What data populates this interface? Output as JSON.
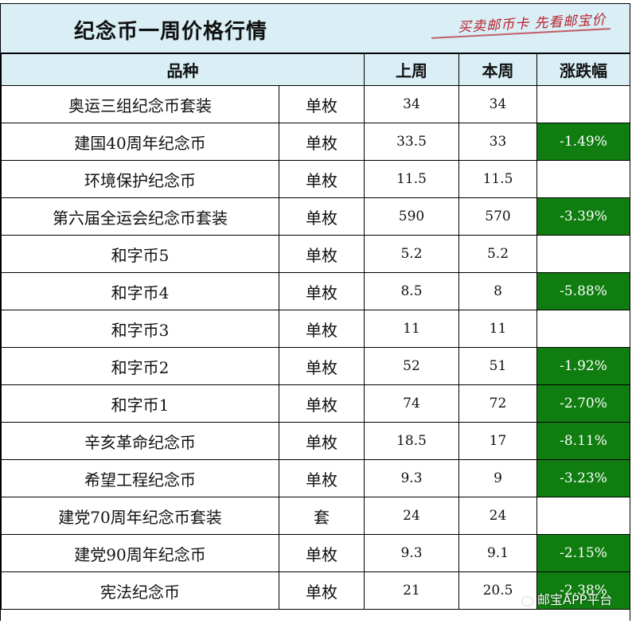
{
  "title": "纪念币一周价格行情",
  "slogan": "买卖邮币卡 先看邮宝价",
  "headers": {
    "variety": "品种",
    "last_week": "上周",
    "this_week": "本周",
    "change": "涨跌幅"
  },
  "rows": [
    {
      "name": "奥运三组纪念币套装",
      "unit": "单枚",
      "last": "34",
      "current": "34",
      "change": ""
    },
    {
      "name": "建国40周年纪念币",
      "unit": "单枚",
      "last": "33.5",
      "current": "33",
      "change": "-1.49%"
    },
    {
      "name": "环境保护纪念币",
      "unit": "单枚",
      "last": "11.5",
      "current": "11.5",
      "change": ""
    },
    {
      "name": "第六届全运会纪念币套装",
      "unit": "单枚",
      "last": "590",
      "current": "570",
      "change": "-3.39%"
    },
    {
      "name": "和字币5",
      "unit": "单枚",
      "last": "5.2",
      "current": "5.2",
      "change": ""
    },
    {
      "name": "和字币4",
      "unit": "单枚",
      "last": "8.5",
      "current": "8",
      "change": "-5.88%"
    },
    {
      "name": "和字币3",
      "unit": "单枚",
      "last": "11",
      "current": "11",
      "change": ""
    },
    {
      "name": "和字币2",
      "unit": "单枚",
      "last": "52",
      "current": "51",
      "change": "-1.92%"
    },
    {
      "name": "和字币1",
      "unit": "单枚",
      "last": "74",
      "current": "72",
      "change": "-2.70%"
    },
    {
      "name": "辛亥革命纪念币",
      "unit": "单枚",
      "last": "18.5",
      "current": "17",
      "change": "-8.11%"
    },
    {
      "name": "希望工程纪念币",
      "unit": "单枚",
      "last": "9.3",
      "current": "9",
      "change": "-3.23%"
    },
    {
      "name": "建党70周年纪念币套装",
      "unit": "套",
      "last": "24",
      "current": "24",
      "change": ""
    },
    {
      "name": "建党90周年纪念币",
      "unit": "单枚",
      "last": "9.3",
      "current": "9.1",
      "change": "-2.15%"
    },
    {
      "name": "宪法纪念币",
      "unit": "单枚",
      "last": "21",
      "current": "20.5",
      "change": "-2.38%"
    }
  ],
  "watermark": "邮宝APP平台",
  "colors": {
    "header_bg": "#d9eef5",
    "down_cell_bg": "#0f7d0f",
    "slogan": "#b8232d"
  }
}
